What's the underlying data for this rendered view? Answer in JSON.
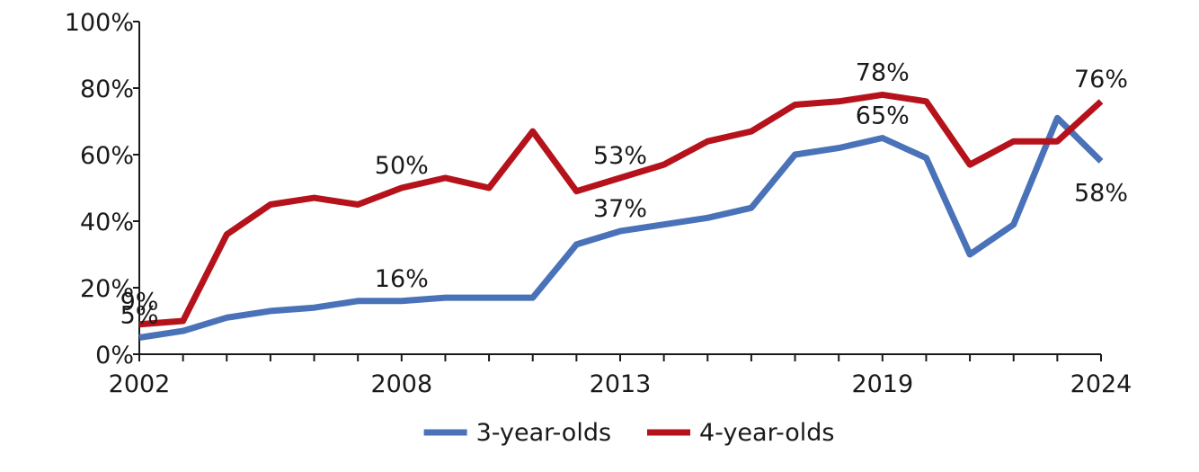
{
  "chart_data": {
    "type": "line",
    "x": [
      2002,
      2003,
      2004,
      2005,
      2006,
      2007,
      2008,
      2009,
      2010,
      2011,
      2012,
      2013,
      2014,
      2015,
      2016,
      2017,
      2018,
      2019,
      2020,
      2021,
      2022,
      2023,
      2024
    ],
    "x_tick_labels": [
      "2002",
      "2008",
      "2013",
      "2019",
      "2024"
    ],
    "y_tick_labels": [
      "0%",
      "20%",
      "40%",
      "60%",
      "80%",
      "100%"
    ],
    "ylim": [
      0,
      100
    ],
    "y_unit": "%",
    "grid": false,
    "legend_position": "bottom",
    "series": [
      {
        "name": "3-year-olds",
        "color": "#4a72b8",
        "values": [
          5,
          7,
          11,
          13,
          14,
          16,
          16,
          17,
          17,
          17,
          33,
          37,
          39,
          41,
          44,
          60,
          62,
          65,
          59,
          30,
          39,
          71,
          58
        ],
        "labels": [
          {
            "x": 2002,
            "text": "5%",
            "position": "above"
          },
          {
            "x": 2008,
            "text": "16%",
            "position": "above"
          },
          {
            "x": 2013,
            "text": "37%",
            "position": "above"
          },
          {
            "x": 2019,
            "text": "65%",
            "position": "above"
          },
          {
            "x": 2024,
            "text": "58%",
            "position": "below"
          }
        ]
      },
      {
        "name": "4-year-olds",
        "color": "#b5121b",
        "values": [
          9,
          10,
          36,
          45,
          47,
          45,
          50,
          53,
          50,
          67,
          49,
          53,
          57,
          64,
          67,
          75,
          76,
          78,
          76,
          57,
          64,
          64,
          76
        ],
        "labels": [
          {
            "x": 2002,
            "text": "9%",
            "position": "above"
          },
          {
            "x": 2008,
            "text": "50%",
            "position": "above"
          },
          {
            "x": 2013,
            "text": "53%",
            "position": "above"
          },
          {
            "x": 2019,
            "text": "78%",
            "position": "above"
          },
          {
            "x": 2024,
            "text": "76%",
            "position": "above"
          }
        ]
      }
    ]
  }
}
